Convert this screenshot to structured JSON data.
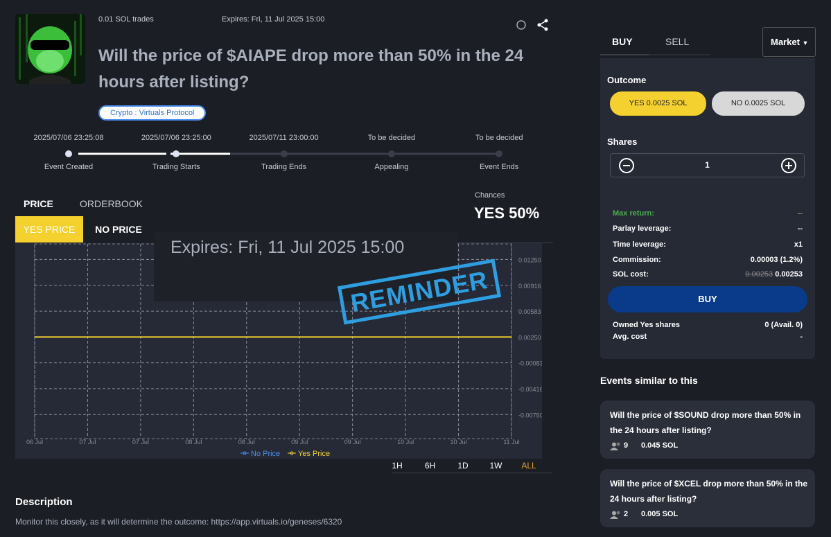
{
  "header": {
    "trades": "0.01 SOL trades",
    "expires": "Expires: Fri, 11 Jul 2025 15:00",
    "title": "Will the price of $AIAPE drop more than 50% in the 24 hours after listing?",
    "tag": "Crypto : Virtuals Protocol"
  },
  "timeline": [
    {
      "date": "2025/07/06 23:25:08",
      "label": "Event Created"
    },
    {
      "date": "2025/07/06 23:25:00",
      "label": "Trading Starts"
    },
    {
      "date": "2025/07/11 23:00:00",
      "label": "Trading Ends"
    },
    {
      "date": "To be decided",
      "label": "Appealing"
    },
    {
      "date": "To be decided",
      "label": "Event Ends"
    }
  ],
  "tabs": [
    "PRICE",
    "ORDERBOOK"
  ],
  "price_tabs": [
    "YES PRICE",
    "NO PRICE"
  ],
  "chances": {
    "label": "Chances",
    "value": "YES 50%"
  },
  "overlay": {
    "expires": "Expires: Fri, 11 Jul 2025 15:00",
    "stamp": "REMINDER"
  },
  "price_chart": {
    "type": "line",
    "categories": [
      "06 Jul",
      "07 Jul",
      "07 Jul",
      "08 Jul",
      "08 Jul",
      "09 Jul",
      "09 Jul",
      "10 Jul",
      "10 Jul",
      "11 Jul"
    ],
    "series": [
      {
        "name": "No Price",
        "color": "#4a8ef0",
        "values": [
          null,
          null,
          null,
          null,
          null,
          null,
          null,
          null,
          null,
          null
        ]
      },
      {
        "name": "Yes Price",
        "color": "#f5d130",
        "values": [
          0.0025,
          0.0025,
          0.0025,
          0.0025,
          0.0025,
          0.0025,
          0.0025,
          0.0025,
          0.0025,
          0.0025
        ]
      }
    ],
    "ylim": [
      -0.0106,
      0.0145
    ],
    "yticks": [
      {
        "value": 0.0125,
        "label": "0.01250"
      },
      {
        "value": 0.00916,
        "label": "0.00916"
      },
      {
        "value": 0.00583,
        "label": "0.00583"
      },
      {
        "value": 0.0025,
        "label": "0.00250"
      },
      {
        "value": -0.00083,
        "label": "-0.00083"
      },
      {
        "value": -0.00416,
        "label": "-0.00416"
      },
      {
        "value": -0.0075,
        "label": "-0.00750"
      }
    ],
    "grid": true
  },
  "ranges": [
    "1H",
    "6H",
    "1D",
    "1W",
    "ALL"
  ],
  "description": {
    "title": "Description",
    "text": "Monitor this closely, as it will determine the outcome: https://app.virtuals.io/geneses/6320"
  },
  "trade": {
    "tabs": [
      "BUY",
      "SELL"
    ],
    "order_type": "Market",
    "outcome_label": "Outcome",
    "yes": "YES 0.0025 SOL",
    "no": "NO 0.0025 SOL",
    "shares_label": "Shares",
    "shares": 1,
    "rows": [
      {
        "label": "Max return:",
        "value": "--"
      },
      {
        "label": "Parlay leverage:",
        "value": "--"
      },
      {
        "label": "Time leverage:",
        "value": "x1"
      },
      {
        "label": "Commission:",
        "value": "0.00003 (1.2%)"
      }
    ],
    "cost_label": "SOL cost:",
    "cost_old": "0.00253",
    "cost": "0.00253",
    "button": "BUY",
    "owned": [
      {
        "label": "Owned Yes shares",
        "value": "0 (Avail. 0)"
      },
      {
        "label": "Avg. cost",
        "value": "-"
      }
    ]
  },
  "similar": {
    "title": "Events similar to this",
    "events": [
      {
        "title": "Will the price of $SOUND drop more than 50% in the 24 hours after listing?",
        "count": 9,
        "amount": "0.045 SOL"
      },
      {
        "title": "Will the price of $XCEL drop more than 50% in the 24 hours after listing?",
        "count": 2,
        "amount": "0.005 SOL"
      }
    ]
  }
}
